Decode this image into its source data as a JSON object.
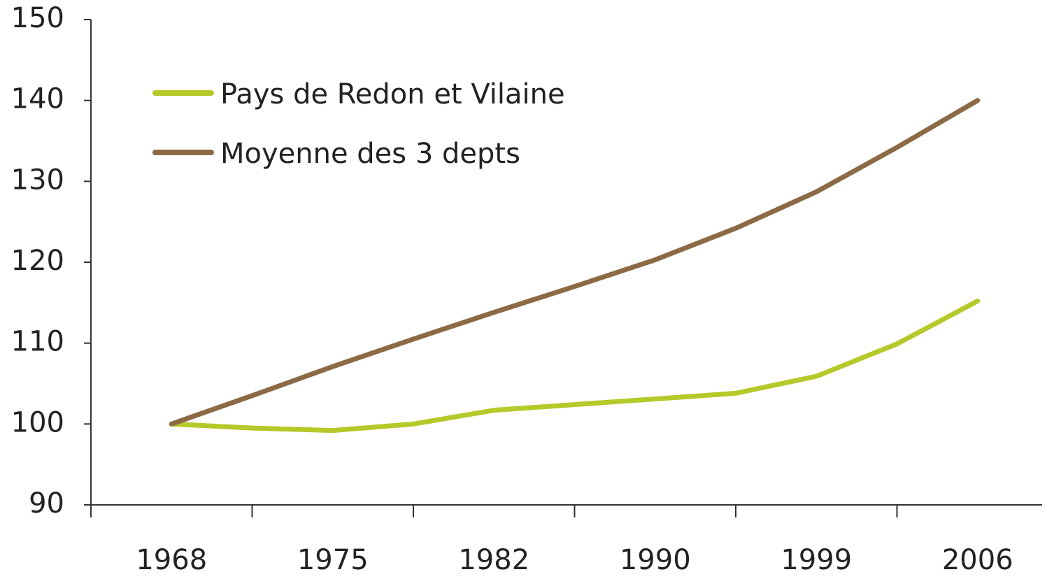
{
  "chart_data": {
    "type": "line",
    "categories": [
      "1968",
      null,
      "1975",
      null,
      "1982",
      null,
      "1990",
      null,
      "1999",
      null,
      "2006"
    ],
    "series": [
      {
        "name": "Pays de Redon et Vilaine",
        "color": "#b5c92a",
        "values": [
          100,
          99.5,
          99.2,
          100,
          101.7,
          102.4,
          103.1,
          103.8,
          105.9,
          109.9,
          115.2
        ]
      },
      {
        "name": "Moyenne des 3 depts",
        "color": "#8b6a45",
        "values": [
          100,
          103.5,
          107.1,
          110.5,
          113.8,
          117,
          120.3,
          124.2,
          128.7,
          134.2,
          140
        ]
      }
    ],
    "ylim": [
      90,
      150
    ],
    "yticks": [
      90,
      100,
      110,
      120,
      130,
      140,
      150
    ],
    "grid": false,
    "legend": "upper left"
  }
}
